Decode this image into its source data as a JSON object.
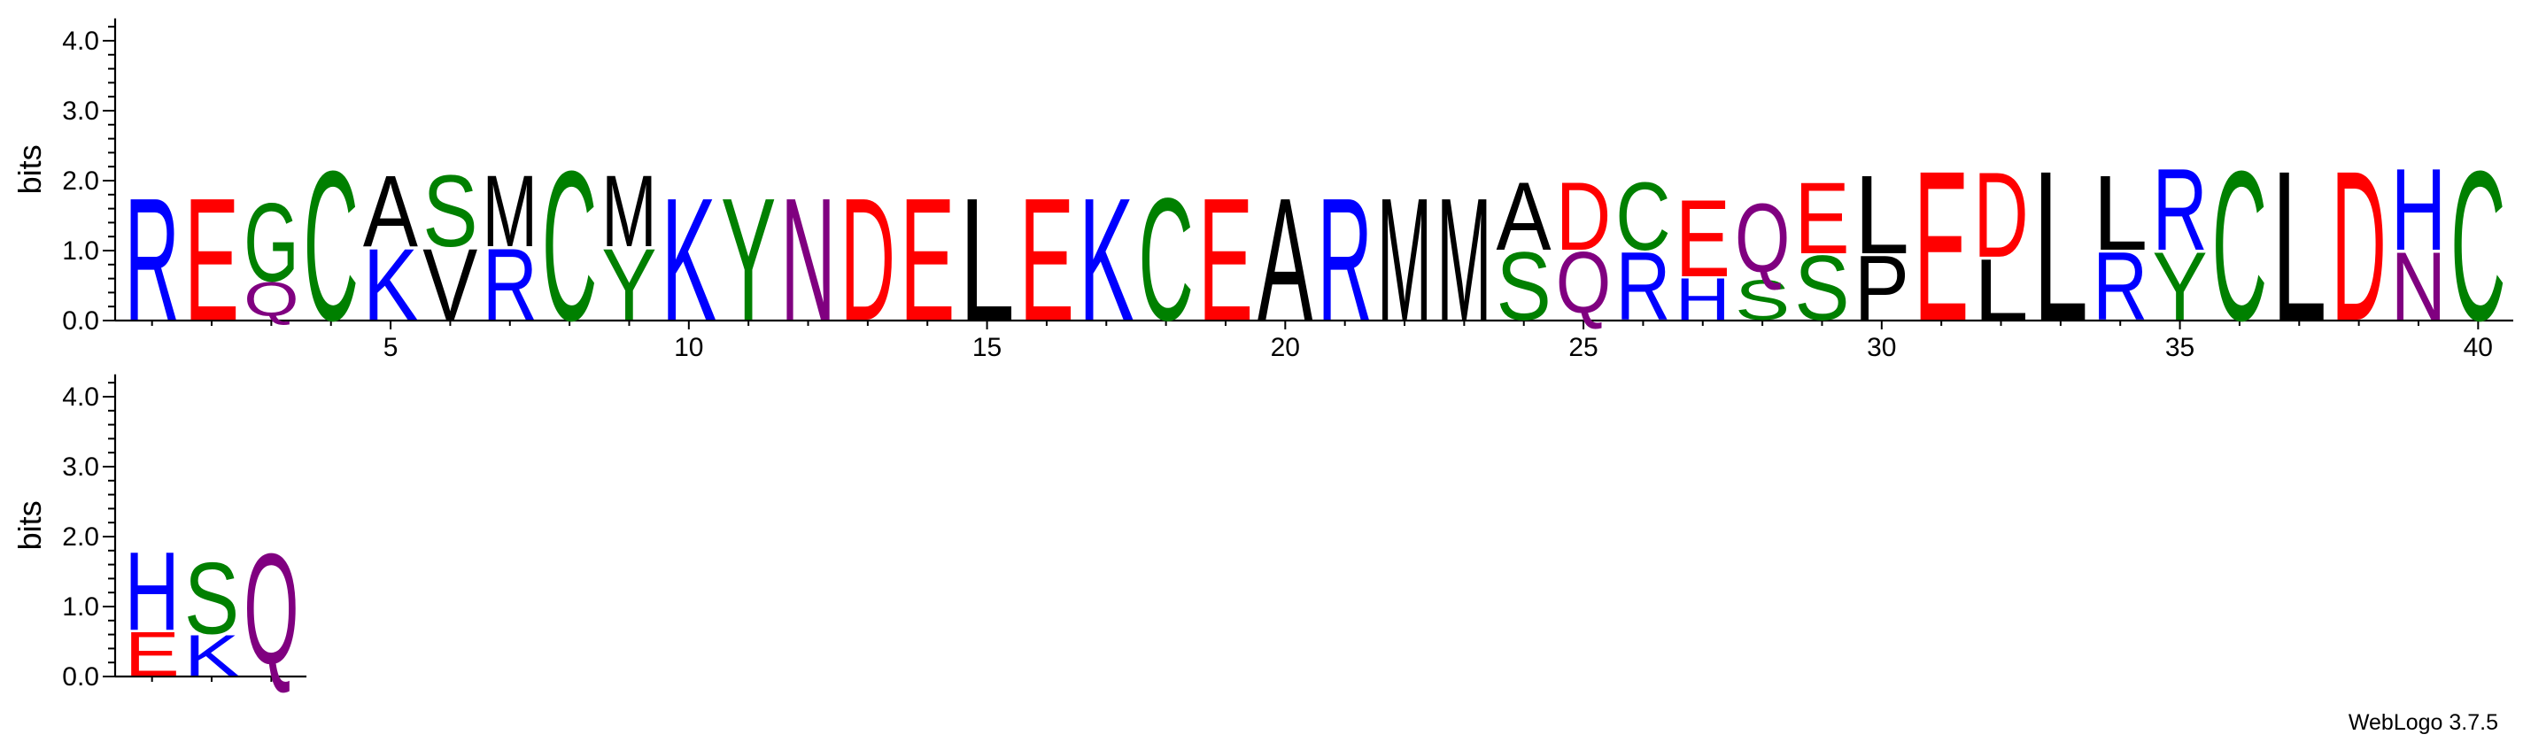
{
  "chart_data": {
    "type": "sequence-logo",
    "ylabel": "bits",
    "ylim": [
      0,
      4.32
    ],
    "yticks": [
      "0.0",
      "1.0",
      "2.0",
      "3.0",
      "4.0"
    ],
    "xticks": [
      "5",
      "10",
      "15",
      "20",
      "25",
      "30",
      "35",
      "40"
    ],
    "colors": {
      "hydrophobic": "#000000",
      "polar": "#008000",
      "basic": "#0000ff",
      "acidic": "#ff0000",
      "amide": "#800080"
    },
    "rows": [
      {
        "start": 1,
        "columns": [
          [
            [
              "R",
              1.8
            ]
          ],
          [
            [
              "E",
              1.8
            ]
          ],
          [
            [
              "Q",
              0.55
            ],
            [
              "G",
              1.15
            ]
          ],
          [
            [
              "C",
              2.2
            ]
          ],
          [
            [
              "K",
              1.05
            ],
            [
              "A",
              1.05
            ]
          ],
          [
            [
              "V",
              1.05
            ],
            [
              "S",
              1.05
            ]
          ],
          [
            [
              "R",
              1.05
            ],
            [
              "M",
              1.05
            ]
          ],
          [
            [
              "C",
              2.2
            ]
          ],
          [
            [
              "Y",
              1.05
            ],
            [
              "M",
              1.05
            ]
          ],
          [
            [
              "K",
              1.8
            ]
          ],
          [
            [
              "Y",
              1.8
            ]
          ],
          [
            [
              "N",
              1.8
            ]
          ],
          [
            [
              "D",
              1.8
            ]
          ],
          [
            [
              "E",
              1.8
            ]
          ],
          [
            [
              "L",
              1.8
            ]
          ],
          [
            [
              "E",
              1.8
            ]
          ],
          [
            [
              "K",
              1.8
            ]
          ],
          [
            [
              "C",
              1.8
            ]
          ],
          [
            [
              "E",
              1.8
            ]
          ],
          [
            [
              "A",
              1.8
            ]
          ],
          [
            [
              "R",
              1.8
            ]
          ],
          [
            [
              "M",
              1.8
            ]
          ],
          [
            [
              "M",
              1.8
            ]
          ],
          [
            [
              "S",
              1.0
            ],
            [
              "A",
              1.0
            ]
          ],
          [
            [
              "Q",
              1.0
            ],
            [
              "D",
              1.0
            ]
          ],
          [
            [
              "R",
              1.0
            ],
            [
              "C",
              1.0
            ]
          ],
          [
            [
              "H",
              0.62
            ],
            [
              "E",
              1.13
            ]
          ],
          [
            [
              "S",
              0.58
            ],
            [
              "Q",
              1.12
            ]
          ],
          [
            [
              "S",
              0.95
            ],
            [
              "E",
              1.05
            ]
          ],
          [
            [
              "P",
              0.95
            ],
            [
              "L",
              1.15
            ]
          ],
          [
            [
              "E",
              2.2
            ]
          ],
          [
            [
              "L",
              0.9
            ],
            [
              "D",
              1.25
            ]
          ],
          [
            [
              "L",
              2.2
            ]
          ],
          [
            [
              "R",
              1.0
            ],
            [
              "L",
              1.1
            ]
          ],
          [
            [
              "Y",
              1.0
            ],
            [
              "R",
              1.2
            ]
          ],
          [
            [
              "C",
              2.2
            ]
          ],
          [
            [
              "L",
              2.2
            ]
          ],
          [
            [
              "D",
              2.2
            ]
          ],
          [
            [
              "N",
              1.0
            ],
            [
              "H",
              1.2
            ]
          ],
          [
            [
              "C",
              2.2
            ]
          ]
        ]
      },
      {
        "start": 41,
        "columns": [
          [
            [
              "E",
              0.65
            ],
            [
              "H",
              1.15
            ]
          ],
          [
            [
              "K",
              0.6
            ],
            [
              "S",
              1.05
            ]
          ],
          [
            [
              "Q",
              1.8
            ]
          ]
        ]
      }
    ]
  },
  "footer": {
    "credit": "WebLogo 3.7.5"
  }
}
